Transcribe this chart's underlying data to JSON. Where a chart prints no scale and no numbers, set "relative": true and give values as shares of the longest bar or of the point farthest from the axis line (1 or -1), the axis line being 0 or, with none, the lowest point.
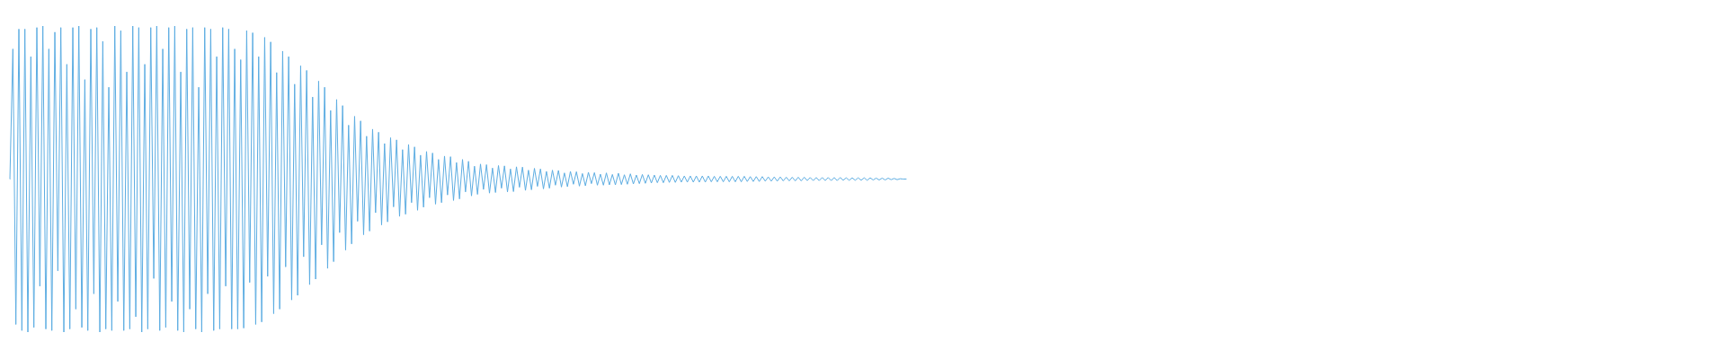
{
  "chart_data": {
    "type": "line",
    "relative": true,
    "marker": "none",
    "line_style": "solid",
    "color": "#5dade2",
    "categories": [
      null,
      null,
      null,
      null,
      null,
      null,
      null,
      null,
      null,
      null,
      null,
      null,
      null,
      null,
      null,
      null,
      null,
      null,
      null,
      null,
      null,
      null,
      null,
      null,
      null,
      null,
      null,
      null,
      null,
      null,
      null,
      null,
      null,
      null,
      null,
      null,
      null,
      null,
      null,
      null,
      null,
      null,
      null,
      null,
      null,
      null,
      null,
      null,
      null,
      null,
      null,
      null,
      null,
      null,
      null,
      null,
      null,
      null,
      null,
      null,
      null,
      null,
      null,
      null,
      null,
      null,
      null,
      null,
      null,
      null,
      null,
      null,
      null,
      null,
      null,
      null,
      null,
      null,
      null,
      null,
      null,
      null,
      null,
      null,
      null,
      null,
      null,
      null,
      null,
      null,
      null,
      null,
      null,
      null,
      null,
      null,
      null,
      null,
      null,
      null,
      null,
      null,
      null,
      null,
      null,
      null,
      null,
      null,
      null,
      null,
      null,
      null,
      null,
      null,
      null,
      null,
      null,
      null,
      null,
      null,
      null,
      null,
      null,
      null,
      null,
      null,
      null,
      null,
      null,
      null,
      null,
      null,
      null,
      null,
      null,
      null,
      null,
      null,
      null,
      null,
      null,
      null,
      null,
      null,
      null,
      null,
      null,
      null,
      null,
      null,
      null,
      null,
      null,
      null,
      null,
      null,
      null,
      null,
      null,
      null,
      null,
      null,
      null,
      null,
      null,
      null,
      null,
      null,
      null,
      null,
      null,
      null,
      null,
      null,
      null,
      null,
      null,
      null,
      null,
      null,
      null,
      null,
      null,
      null,
      null,
      null,
      null,
      null,
      null,
      null,
      null,
      null,
      null,
      null,
      null,
      null,
      null,
      null,
      null,
      null,
      null,
      null,
      null,
      null,
      null,
      null,
      null,
      null,
      null,
      null,
      null,
      null,
      null,
      null,
      null,
      null,
      null,
      null,
      null,
      null,
      null,
      null,
      null,
      null,
      null,
      null,
      null,
      null,
      null,
      null,
      null,
      null,
      null,
      null,
      null,
      null,
      null,
      null,
      null,
      null,
      null,
      null,
      null,
      null,
      null,
      null,
      null,
      null,
      null,
      null,
      null,
      null,
      null,
      null,
      null,
      null,
      null,
      null,
      null,
      null,
      null,
      null,
      null,
      null,
      null,
      null,
      null,
      null,
      null,
      null,
      null,
      null,
      null,
      null,
      null,
      null,
      null,
      null,
      null,
      null,
      null,
      null,
      null,
      null,
      null,
      null,
      null,
      null,
      null,
      null,
      null,
      null,
      null,
      null,
      null,
      null,
      null,
      null,
      null,
      null
    ],
    "values": [
      0.5,
      0.925,
      0.025,
      0.99,
      0.005,
      0.99,
      0.0,
      0.9,
      0.015,
      0.995,
      0.15,
      1.0,
      0.01,
      0.925,
      0.005,
      0.98,
      0.2,
      0.995,
      0.0,
      0.875,
      0.01,
      0.995,
      0.075,
      1.0,
      0.015,
      0.825,
      0.005,
      0.99,
      0.125,
      0.995,
      0.0,
      0.95,
      0.01,
      0.8,
      0.005,
      1.0,
      0.1,
      0.985,
      0.005,
      0.85,
      0.01,
      1.0,
      0.05,
      0.995,
      0.0,
      0.875,
      0.01,
      0.995,
      0.175,
      1.0,
      0.005,
      0.925,
      0.015,
      0.995,
      0.1,
      1.0,
      0.005,
      0.85,
      0.0,
      0.99,
      0.075,
      0.995,
      0.01,
      0.8,
      0.0,
      0.995,
      0.125,
      0.99,
      0.005,
      0.9,
      0.01,
      0.995,
      0.15,
      0.99,
      0.01,
      0.925,
      0.01,
      0.89,
      0.013,
      0.985,
      0.162,
      0.978,
      0.025,
      0.9,
      0.033,
      0.963,
      0.182,
      0.948,
      0.06,
      0.848,
      0.075,
      0.918,
      0.213,
      0.9,
      0.105,
      0.81,
      0.12,
      0.87,
      0.246,
      0.855,
      0.155,
      0.768,
      0.173,
      0.82,
      0.285,
      0.8,
      0.208,
      0.724,
      0.23,
      0.76,
      0.325,
      0.74,
      0.268,
      0.676,
      0.288,
      0.705,
      0.362,
      0.69,
      0.318,
      0.64,
      0.33,
      0.663,
      0.39,
      0.653,
      0.35,
      0.616,
      0.36,
      0.635,
      0.409,
      0.628,
      0.378,
      0.596,
      0.385,
      0.613,
      0.423,
      0.605,
      0.398,
      0.578,
      0.408,
      0.59,
      0.439,
      0.585,
      0.418,
      0.564,
      0.423,
      0.575,
      0.448,
      0.573,
      0.43,
      0.554,
      0.435,
      0.564,
      0.458,
      0.558,
      0.445,
      0.542,
      0.45,
      0.549,
      0.466,
      0.547,
      0.454,
      0.536,
      0.456,
      0.544,
      0.47,
      0.543,
      0.458,
      0.533,
      0.459,
      0.54,
      0.473,
      0.539,
      0.463,
      0.529,
      0.465,
      0.535,
      0.476,
      0.533,
      0.468,
      0.525,
      0.47,
      0.529,
      0.48,
      0.528,
      0.474,
      0.52,
      0.475,
      0.525,
      0.483,
      0.524,
      0.477,
      0.518,
      0.478,
      0.522,
      0.485,
      0.521,
      0.48,
      0.516,
      0.48,
      0.52,
      0.481,
      0.515,
      0.481,
      0.519,
      0.482,
      0.514,
      0.483,
      0.517,
      0.484,
      0.513,
      0.485,
      0.515,
      0.486,
      0.514,
      0.487,
      0.513,
      0.488,
      0.512,
      0.488,
      0.512,
      0.489,
      0.512,
      0.489,
      0.511,
      0.49,
      0.51,
      0.49,
      0.51,
      0.49,
      0.51,
      0.49,
      0.51,
      0.49,
      0.51,
      0.491,
      0.509,
      0.491,
      0.509,
      0.491,
      0.509,
      0.491,
      0.509,
      0.491,
      0.509,
      0.491,
      0.509,
      0.492,
      0.508,
      0.492,
      0.508,
      0.492,
      0.508,
      0.493,
      0.507,
      0.493,
      0.507,
      0.493,
      0.507,
      0.494,
      0.506,
      0.494,
      0.506,
      0.494,
      0.506,
      0.494,
      0.506,
      0.495,
      0.505,
      0.495,
      0.505,
      0.495,
      0.505,
      0.495,
      0.505,
      0.495,
      0.505,
      0.495,
      0.505,
      0.496,
      0.504,
      0.496,
      0.504,
      0.496,
      0.504,
      0.496,
      0.504,
      0.496,
      0.504,
      0.497,
      0.503,
      0.497,
      0.503,
      0.497,
      0.503,
      0.498,
      0.502,
      0.498,
      0.501,
      0.5,
      0.5
    ]
  }
}
